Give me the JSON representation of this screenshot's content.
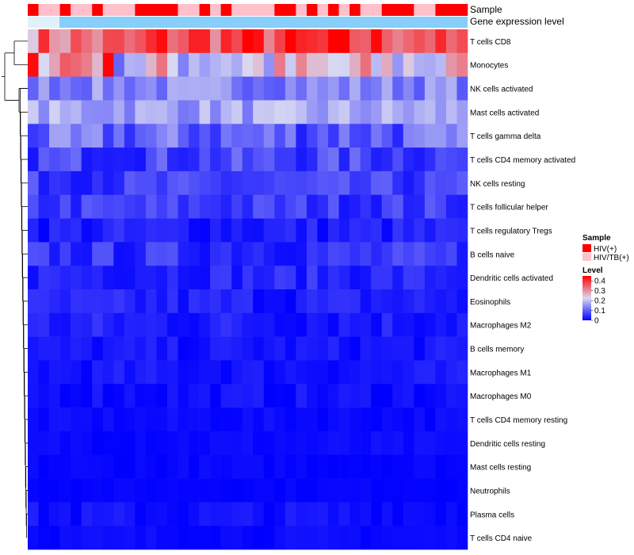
{
  "chart_data": {
    "type": "heatmap",
    "annotation_labels": {
      "sample": "Sample",
      "gene": "Gene expression level"
    },
    "sample_annotation": [
      1,
      0,
      0,
      1,
      0,
      0,
      1,
      0,
      0,
      0,
      1,
      1,
      1,
      1,
      0,
      0,
      1,
      0,
      1,
      0,
      0,
      0,
      0,
      1,
      1,
      0,
      1,
      0,
      1,
      0,
      1,
      0,
      0,
      1,
      1,
      1,
      0,
      0,
      1,
      1,
      1
    ],
    "rows": [
      "T cells CD8",
      "Monocytes",
      "NK cells activated",
      "Mast cells activated",
      "T cells gamma delta",
      "T cells CD4 memory activated",
      "NK cells resting",
      "T cells follicular helper",
      "T cells regulatory  Tregs",
      "B cells naive",
      "Dendritic cells activated",
      "Eosinophils",
      "Macrophages M2",
      "B cells memory",
      "Macrophages M1",
      "Macrophages M0",
      "T cells CD4 memory resting",
      "Dendritic cells resting",
      "Mast cells resting",
      "Neutrophils",
      "Plasma cells",
      "T cells CD4 naive"
    ],
    "row_base": [
      0.33,
      0.22,
      0.14,
      0.17,
      0.1,
      0.07,
      0.06,
      0.06,
      0.03,
      0.05,
      0.04,
      0.03,
      0.03,
      0.02,
      0.02,
      0.015,
      0.01,
      0.01,
      0.005,
      0.005,
      0.015,
      0.01
    ],
    "row_spread": [
      0.09,
      0.13,
      0.05,
      0.05,
      0.07,
      0.05,
      0.04,
      0.04,
      0.03,
      0.04,
      0.03,
      0.03,
      0.03,
      0.02,
      0.02,
      0.02,
      0.01,
      0.01,
      0.01,
      0.005,
      0.02,
      0.01
    ],
    "n_samples": 41,
    "legend": {
      "sample_title": "Sample",
      "sample_entries": [
        {
          "label": "HIV(+)",
          "color": "#ff0000"
        },
        {
          "label": "HIV/TB(+)",
          "color": "#ffc0cb"
        }
      ],
      "level_title": "Level",
      "level_ticks": [
        "0.4",
        "0.3",
        "0.2",
        "0.1",
        "0"
      ],
      "level_tick_values": [
        0.4,
        0.3,
        0.2,
        0.1,
        0
      ]
    },
    "colors": {
      "low": "#0000ff",
      "mid": "#d9d9f2",
      "high": "#ff0000",
      "gene_bar": "#87cefa"
    },
    "range": [
      0,
      0.45
    ]
  }
}
